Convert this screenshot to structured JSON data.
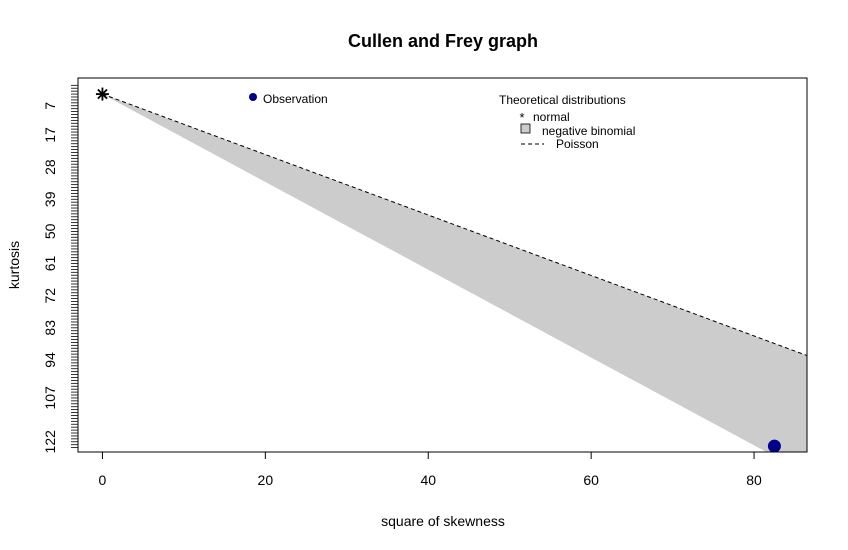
{
  "chart_data": {
    "type": "scatter",
    "title": "Cullen and Frey graph",
    "xlabel": "square of skewness",
    "ylabel": "kurtosis",
    "xlim": [
      -3,
      86.5
    ],
    "ylim": [
      125.5,
      -2.5
    ],
    "x_ticks": [
      0,
      20,
      40,
      60,
      80
    ],
    "y_tick_labels": [
      "7",
      "17",
      "28",
      "39",
      "50",
      "61",
      "72",
      "83",
      "94",
      "107",
      "122"
    ],
    "y_tick_values": [
      7,
      17,
      28,
      39,
      50,
      61,
      72,
      83,
      94,
      107,
      122
    ],
    "observation": {
      "x": 82.5,
      "y": 123.5,
      "color": "#00008B"
    },
    "normal": {
      "x": 0,
      "y": 3
    },
    "poisson_line": [
      [
        0,
        3
      ],
      [
        86.5,
        92.5
      ]
    ],
    "negative_binomial_region": {
      "upper": [
        [
          0,
          3
        ],
        [
          86.5,
          92.5
        ]
      ],
      "lower": [
        [
          0,
          3
        ],
        [
          86.5,
          133
        ]
      ],
      "color": "#CCCCCC"
    },
    "legend_observation": "Observation",
    "legend_title": "Theoretical distributions",
    "legend_entries": [
      "normal",
      "negative binomial",
      "Poisson"
    ]
  }
}
